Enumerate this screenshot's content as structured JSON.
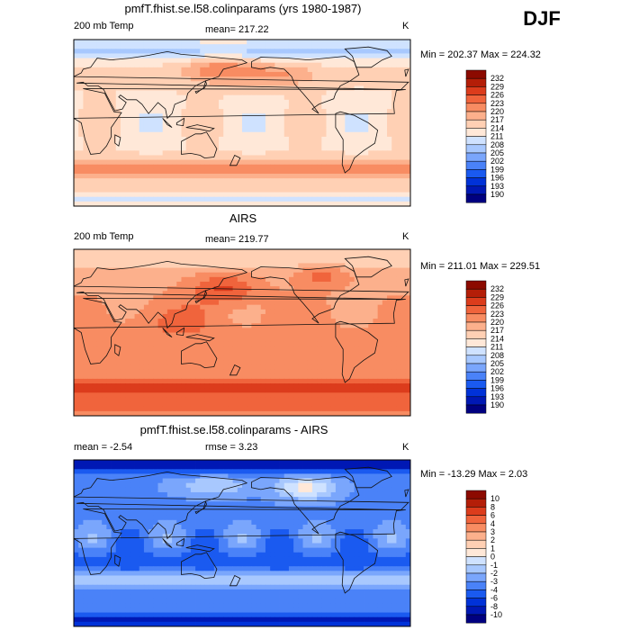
{
  "season": "DJF",
  "chart_data": [
    {
      "type": "heatmap",
      "title": "pmfT.fhist.se.l58.colinparams (yrs 1980-1987)",
      "variable": "200 mb Temp",
      "mean_label": "mean= 217.22",
      "units": "K",
      "minmax_label": "Min = 202.37  Max = 224.32",
      "min": 202.37,
      "max": 224.32,
      "levels": [
        "190",
        "193",
        "196",
        "199",
        "202",
        "205",
        "208",
        "211",
        "214",
        "217",
        "220",
        "223",
        "226",
        "229",
        "232"
      ],
      "palette": [
        "#000080",
        "#0018b4",
        "#0032d8",
        "#1a5af0",
        "#4a82f8",
        "#7aa6fc",
        "#a8c8fe",
        "#cfe2ff",
        "#ffe8d8",
        "#ffd0b4",
        "#fcb08c",
        "#f88c62",
        "#f0643c",
        "#dc3c1c",
        "#b41e08",
        "#8c0a00"
      ],
      "field_model": "model"
    },
    {
      "type": "heatmap",
      "title": "AIRS",
      "variable": "200 mb Temp",
      "mean_label": "mean= 219.77",
      "units": "K",
      "minmax_label": "Min = 211.01  Max = 229.51",
      "min": 211.01,
      "max": 229.51,
      "levels": [
        "190",
        "193",
        "196",
        "199",
        "202",
        "205",
        "208",
        "211",
        "214",
        "217",
        "220",
        "223",
        "226",
        "229",
        "232"
      ],
      "palette": [
        "#000080",
        "#0018b4",
        "#0032d8",
        "#1a5af0",
        "#4a82f8",
        "#7aa6fc",
        "#a8c8fe",
        "#cfe2ff",
        "#ffe8d8",
        "#ffd0b4",
        "#fcb08c",
        "#f88c62",
        "#f0643c",
        "#dc3c1c",
        "#b41e08",
        "#8c0a00"
      ],
      "field_model": "obs"
    },
    {
      "type": "heatmap",
      "title": "pmfT.fhist.se.l58.colinparams - AIRS",
      "variable": "mean =   -2.54",
      "mean_label": "rmse =    3.23",
      "units": "K",
      "minmax_label": "Min = -13.29  Max =    2.03",
      "min": -13.29,
      "max": 2.03,
      "levels": [
        "-10",
        "-8",
        "-6",
        "-4",
        "-3",
        "-2",
        "-1",
        "0",
        "1",
        "2",
        "3",
        "4",
        "6",
        "8",
        "10"
      ],
      "palette": [
        "#000080",
        "#0018b4",
        "#0032d8",
        "#1a5af0",
        "#4a82f8",
        "#7aa6fc",
        "#a8c8fe",
        "#cfe2ff",
        "#ffe8d8",
        "#ffd0b4",
        "#fcb08c",
        "#f88c62",
        "#f0643c",
        "#dc3c1c",
        "#b41e08",
        "#8c0a00"
      ],
      "field_model": "diff"
    }
  ]
}
